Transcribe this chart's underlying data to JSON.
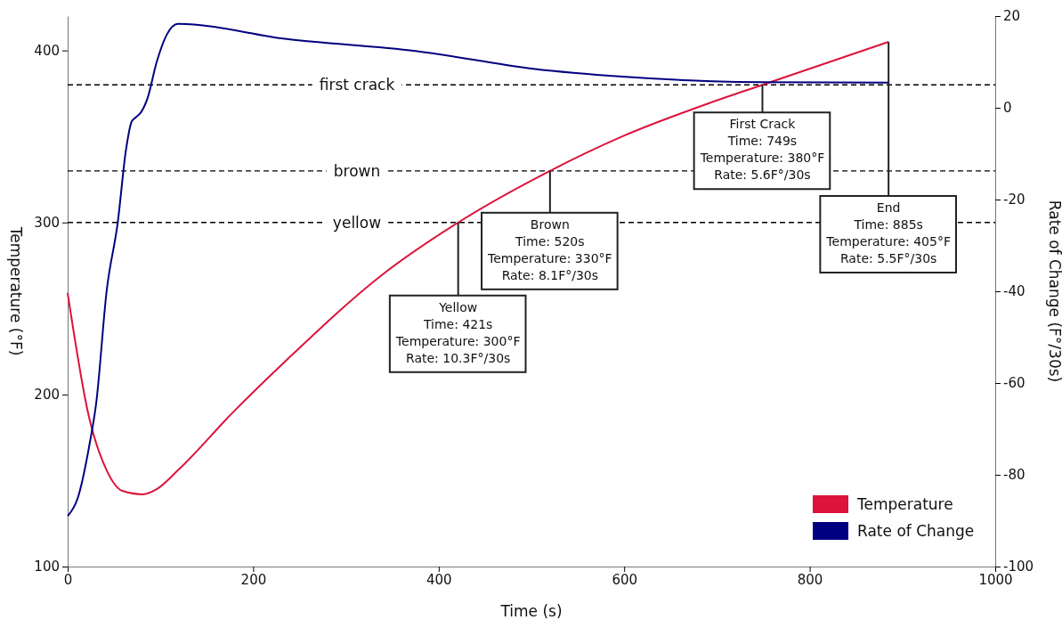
{
  "chart_data": {
    "type": "line",
    "xlabel": "Time (s)",
    "ylabel": "Temperature (°F)",
    "y2label": "Rate of Change (F°/30s)",
    "xlim": [
      0,
      1000
    ],
    "xticks": [
      0,
      200,
      400,
      600,
      800,
      1000
    ],
    "ylim": [
      100,
      420
    ],
    "yticks": [
      100,
      200,
      300,
      400
    ],
    "y2lim": [
      -100,
      20
    ],
    "y2ticks": [
      -100,
      -80,
      -60,
      -40,
      -20,
      0,
      20
    ],
    "grid": false,
    "legend": "bottom right",
    "marker": "none",
    "line_style": "solid",
    "series": [
      {
        "name": "Temperature",
        "color": "#dc143c",
        "x": [
          0,
          23,
          42,
          59,
          81,
          96,
          119,
          177,
          236,
          340,
          421,
          520,
          598,
          695,
          749,
          885
        ],
        "values": [
          259,
          187,
          156,
          144,
          142,
          145,
          156,
          189,
          220,
          270,
          300,
          330,
          350,
          370,
          380,
          405
        ]
      },
      {
        "name": "Rate of Change",
        "color": "#000080",
        "axis": "y2",
        "x": [
          0,
          11,
          23,
          31,
          42,
          54,
          63,
          69,
          74,
          79,
          86,
          96,
          107,
          119,
          236,
          375,
          502,
          598,
          695,
          749,
          885
        ],
        "values": [
          -89,
          -85,
          -74,
          -64,
          -40,
          -25,
          -9,
          -3,
          -2,
          -1,
          2,
          10,
          16,
          18.3,
          15,
          12.4,
          8.5,
          6.8,
          5.8,
          5.6,
          5.5
        ]
      }
    ],
    "ref_lines": [
      {
        "axis": "y",
        "value": 380,
        "label": "first crack",
        "color": "#000000",
        "line_style": "dashed"
      },
      {
        "axis": "y",
        "value": 330,
        "label": "brown",
        "color": "#000000",
        "line_style": "dashed"
      },
      {
        "axis": "y",
        "value": 300,
        "label": "yellow",
        "color": "#000000",
        "line_style": "dashed"
      }
    ],
    "annotations": [
      {
        "text": "Yellow\nTime: 421s\nTemperature: 300°F\nRate: 10.3F°/30s",
        "x": 421,
        "y": 300
      },
      {
        "text": "Brown\nTime: 520s\nTemperature: 330°F\nRate: 8.1F°/30s",
        "x": 520,
        "y": 330
      },
      {
        "text": "First Crack\nTime: 749s\nTemperature: 380°F\nRate: 5.6F°/30s",
        "x": 749,
        "y": 380
      },
      {
        "text": "End\nTime: 885s\nTemperature: 405°F\nRate: 5.5F°/30s",
        "x": 885,
        "y": 405
      }
    ]
  }
}
